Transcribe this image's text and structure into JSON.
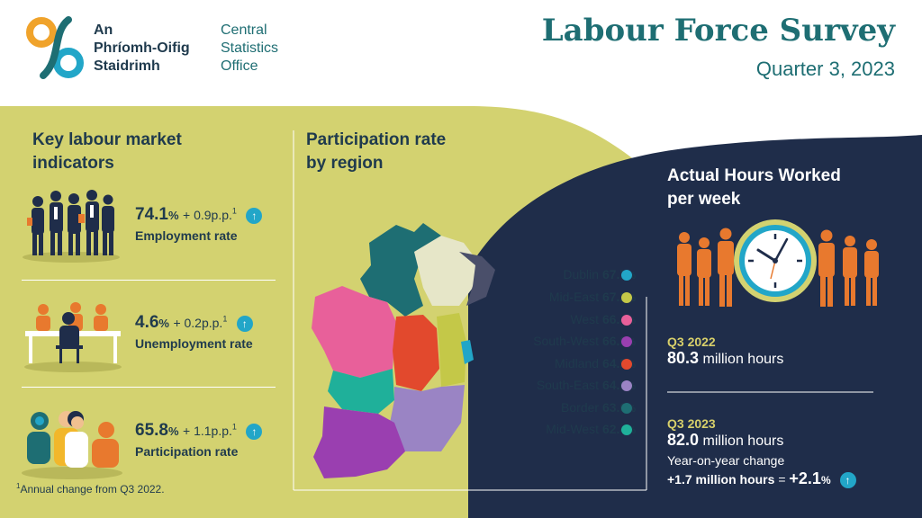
{
  "logo": {
    "irish_lines": [
      "An",
      "Phríomh-Oifig",
      "Staidrimh"
    ],
    "english_lines": [
      "Central",
      "Statistics",
      "Office"
    ]
  },
  "header": {
    "title": "Labour Force Survey",
    "subtitle": "Quarter 3, 2023"
  },
  "indicators": {
    "title_line1": "Key labour market",
    "title_line2": "indicators",
    "items": [
      {
        "value": "74.1",
        "unit": "%",
        "change": "+ 0.9p.p.",
        "footnote_mark": "1",
        "label": "Employment rate",
        "icon": "business-people-icon"
      },
      {
        "value": "4.6",
        "unit": "%",
        "change": "+ 0.2p.p.",
        "footnote_mark": "1",
        "label": "Unemployment rate",
        "icon": "job-interview-icon"
      },
      {
        "value": "65.8",
        "unit": "%",
        "change": "+ 1.1p.p.",
        "footnote_mark": "1",
        "label": "Participation rate",
        "icon": "group-of-people-icon"
      }
    ],
    "footnote_mark": "1",
    "footnote_text": "Annual change from Q3 2022."
  },
  "regions": {
    "title_line1": "Participation rate",
    "title_line2": "by region",
    "items": [
      {
        "name": "Dublin",
        "value": "67.7",
        "unit": "%",
        "color": "#22a6c8"
      },
      {
        "name": "Mid-East",
        "value": "67.2",
        "unit": "%",
        "color": "#c4c848"
      },
      {
        "name": "West",
        "value": "66.4",
        "unit": "%",
        "color": "#e8609a"
      },
      {
        "name": "South-West",
        "value": "66.0",
        "unit": "%",
        "color": "#9a3fb0"
      },
      {
        "name": "Midland",
        "value": "64.5",
        "unit": "%",
        "color": "#e2492d"
      },
      {
        "name": "South-East",
        "value": "64.0",
        "unit": "%",
        "color": "#9a84c4"
      },
      {
        "name": "Border",
        "value": "63.0",
        "unit": "%",
        "color": "#1e6e73"
      },
      {
        "name": "Mid-West",
        "value": "62.4",
        "unit": "%",
        "color": "#1fb09a"
      }
    ]
  },
  "hours": {
    "title_line1": "Actual Hours Worked",
    "title_line2": "per week",
    "q1_label": "Q3 2022",
    "q1_value": "80.3",
    "q1_unit": "million hours",
    "q2_label": "Q3 2023",
    "q2_value": "82.0",
    "q2_unit": "million hours",
    "yoy_label": "Year-on-year change",
    "yoy_change": "+1.7 million hours",
    "yoy_equals": "=",
    "yoy_pct": "+2.1",
    "yoy_pct_unit": "%"
  },
  "colors": {
    "navy": "#1f2d4a",
    "olive": "#d3d270",
    "teal": "#1e6e73",
    "accent_blue": "#22a6c8",
    "orange": "#e8792e"
  }
}
